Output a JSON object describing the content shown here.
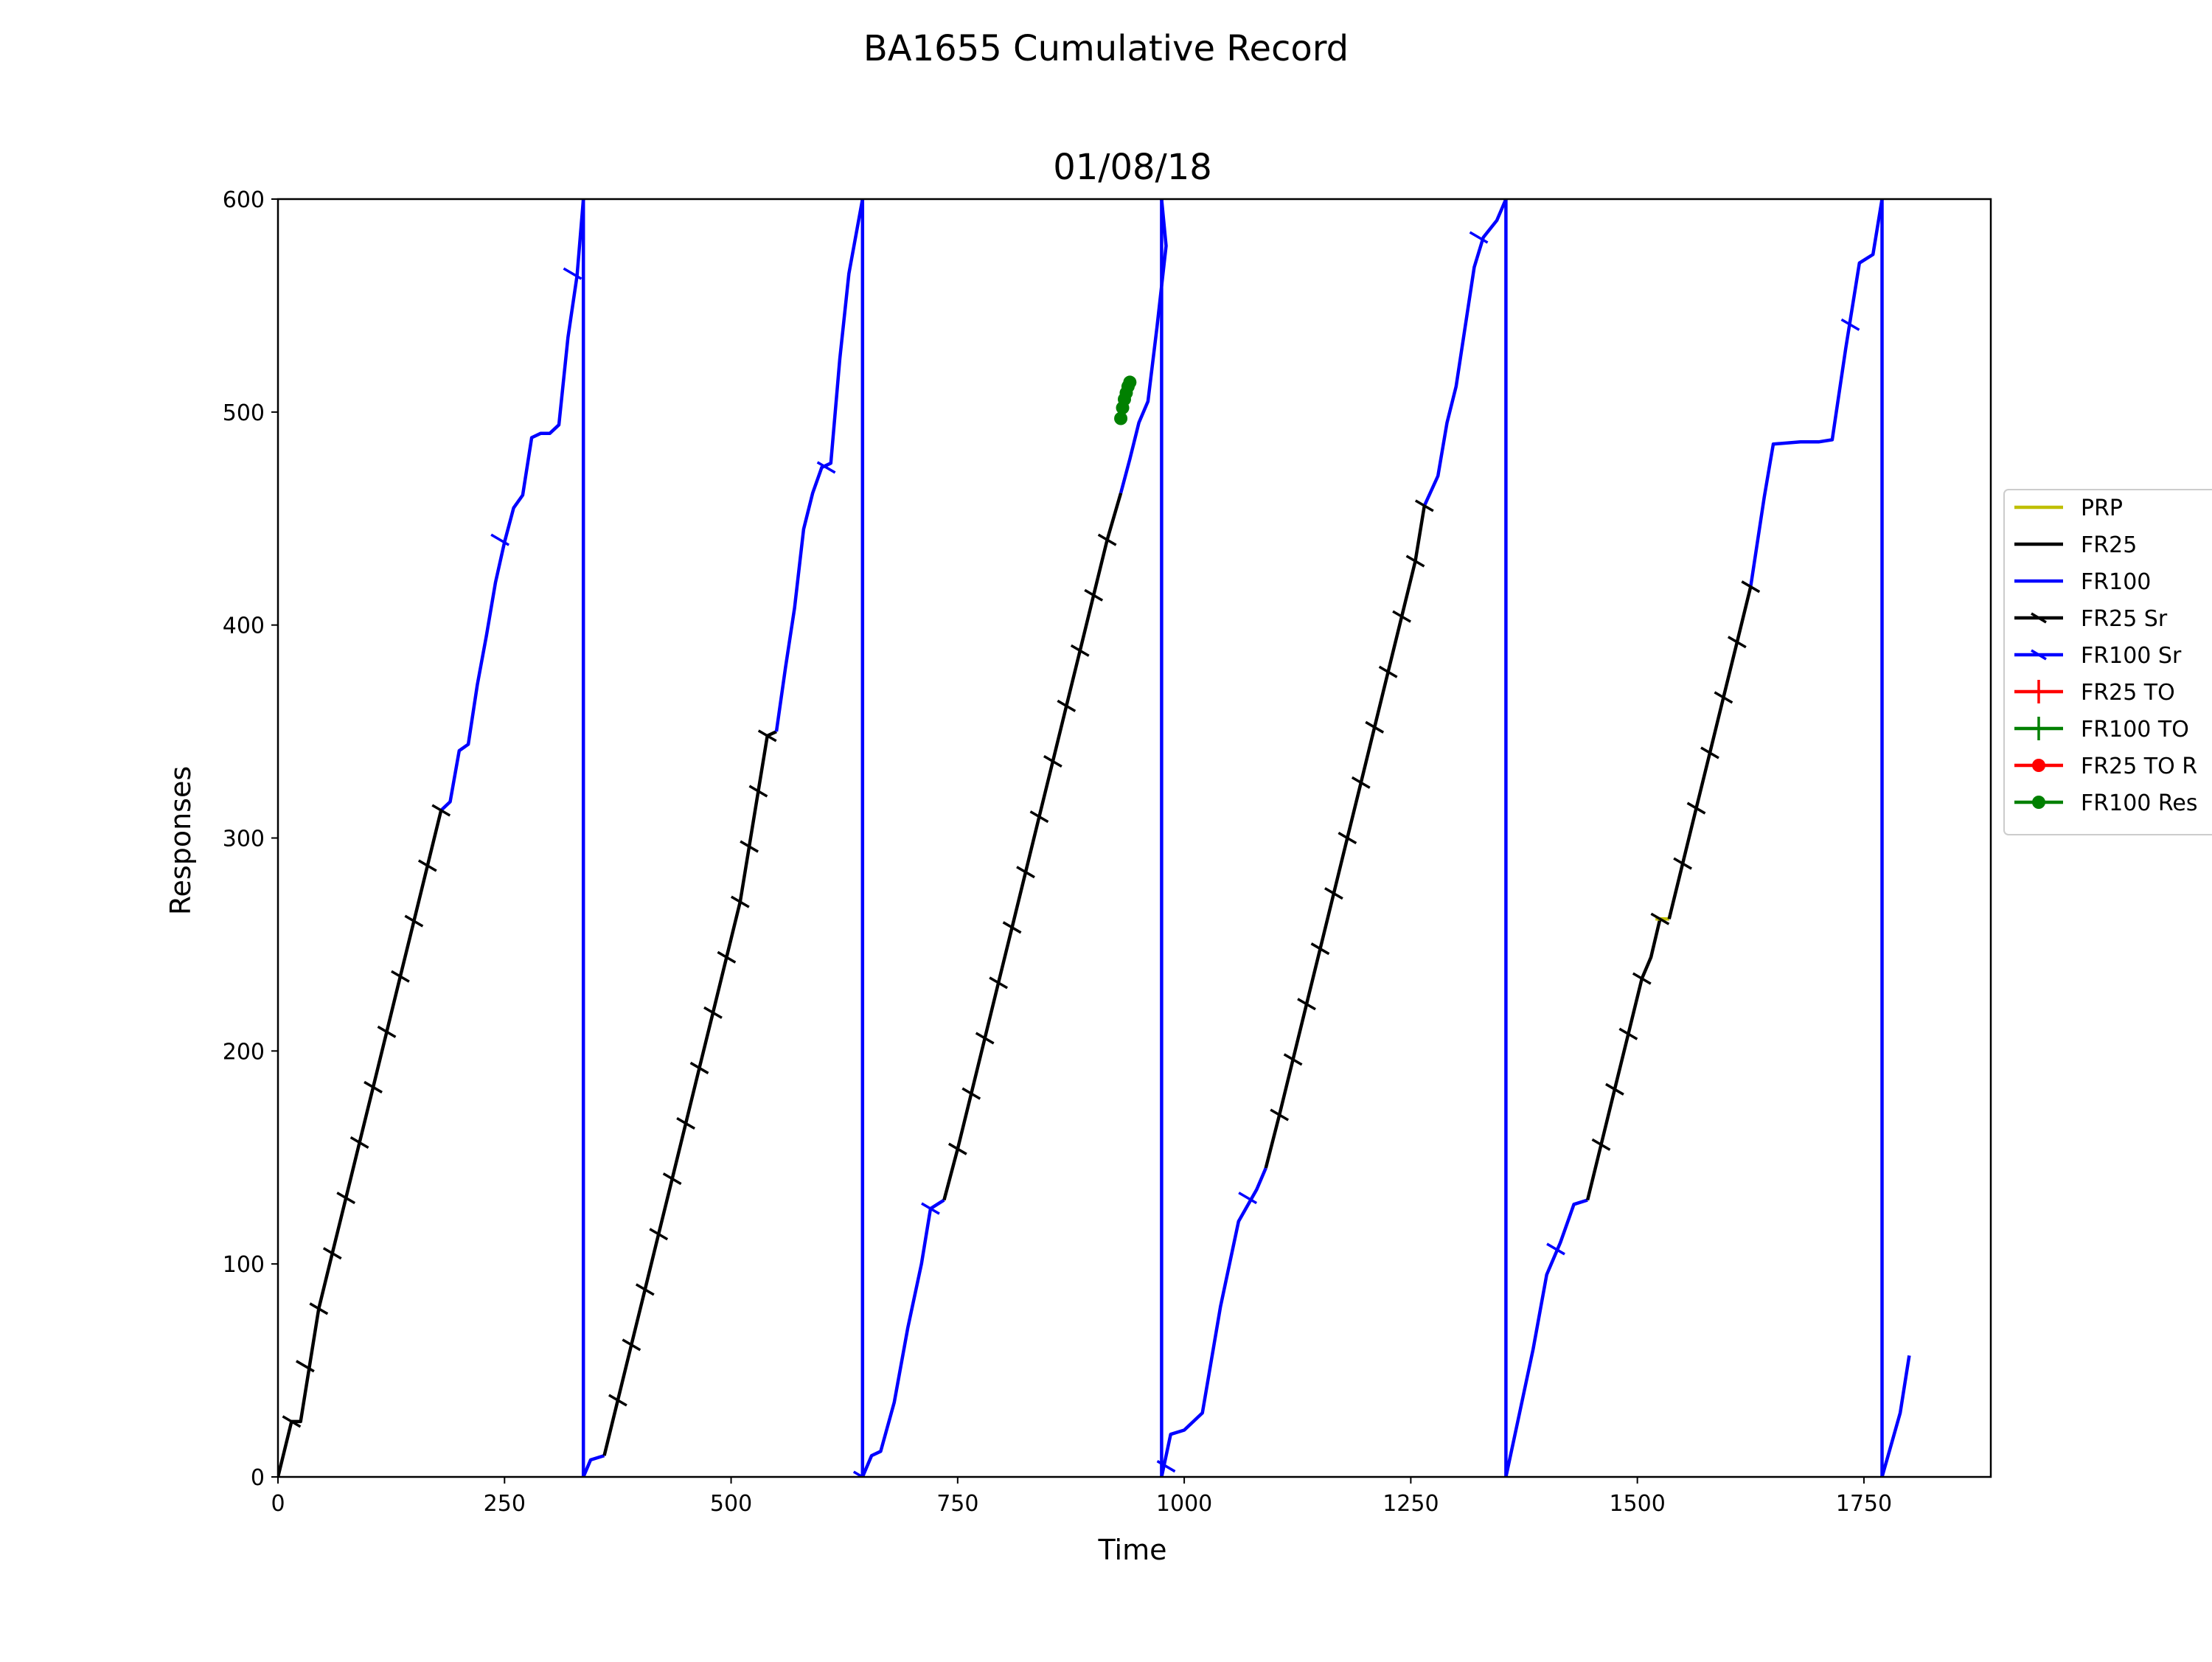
{
  "chart_data": {
    "type": "line",
    "suptitle": "BA1655 Cumulative Record",
    "title": "01/08/18",
    "xlabel": "Time",
    "ylabel": "Responses",
    "xlim": [
      0,
      1890
    ],
    "ylim": [
      0,
      600
    ],
    "xticks": [
      0,
      250,
      500,
      750,
      1000,
      1250,
      1500,
      1750
    ],
    "yticks": [
      0,
      100,
      200,
      300,
      400,
      500,
      600
    ],
    "grid": false,
    "legend_position": "right, outside plot",
    "legend": [
      {
        "label": "PRP",
        "color": "#bfbf00",
        "marker": "none"
      },
      {
        "label": "FR25",
        "color": "#000000",
        "marker": "none"
      },
      {
        "label": "FR100",
        "color": "#0000ff",
        "marker": "none"
      },
      {
        "label": "FR25 Sr",
        "color": "#000000",
        "marker": "tick"
      },
      {
        "label": "FR100 Sr",
        "color": "#0000ff",
        "marker": "tick"
      },
      {
        "label": "FR25 TO",
        "color": "#ff0000",
        "marker": "plus"
      },
      {
        "label": "FR100 TO",
        "color": "#008000",
        "marker": "plus"
      },
      {
        "label": "FR25 TO R",
        "color": "#ff0000",
        "marker": "dot"
      },
      {
        "label": "FR100 Res",
        "color": "#008000",
        "marker": "dot"
      }
    ],
    "series": [
      {
        "name": "FR25",
        "color": "#000000",
        "points": [
          [
            0,
            0
          ],
          [
            15,
            26
          ],
          [
            25,
            26
          ],
          [
            45,
            79
          ],
          [
            60,
            105
          ],
          [
            75,
            131
          ],
          [
            90,
            157
          ],
          [
            105,
            183
          ],
          [
            120,
            209
          ],
          [
            135,
            235
          ],
          [
            150,
            261
          ],
          [
            165,
            287
          ],
          [
            180,
            313
          ]
        ]
      },
      {
        "name": "FR100",
        "color": "#0000ff",
        "points": [
          [
            180,
            313
          ],
          [
            190,
            317
          ],
          [
            200,
            341
          ],
          [
            210,
            344
          ],
          [
            220,
            372
          ],
          [
            230,
            395
          ],
          [
            240,
            420
          ],
          [
            250,
            439
          ],
          [
            260,
            455
          ],
          [
            270,
            461
          ],
          [
            280,
            488
          ],
          [
            290,
            490
          ],
          [
            300,
            490
          ],
          [
            310,
            494
          ],
          [
            320,
            535
          ],
          [
            330,
            564
          ],
          [
            337,
            600
          ]
        ]
      },
      {
        "name": "FR100",
        "color": "#0000ff",
        "points": [
          [
            337,
            600
          ],
          [
            337,
            0
          ],
          [
            345,
            8
          ],
          [
            360,
            10
          ]
        ]
      },
      {
        "name": "FR25",
        "color": "#000000",
        "points": [
          [
            360,
            10
          ],
          [
            375,
            36
          ],
          [
            390,
            62
          ],
          [
            405,
            88
          ],
          [
            420,
            114
          ],
          [
            435,
            140
          ],
          [
            450,
            166
          ],
          [
            465,
            192
          ],
          [
            480,
            218
          ],
          [
            495,
            244
          ],
          [
            510,
            270
          ],
          [
            520,
            296
          ],
          [
            530,
            322
          ],
          [
            540,
            348
          ],
          [
            550,
            350
          ]
        ]
      },
      {
        "name": "FR100",
        "color": "#0000ff",
        "points": [
          [
            550,
            350
          ],
          [
            560,
            380
          ],
          [
            570,
            408
          ],
          [
            580,
            445
          ],
          [
            590,
            462
          ],
          [
            600,
            474
          ],
          [
            610,
            476
          ],
          [
            620,
            525
          ],
          [
            630,
            565
          ],
          [
            645,
            600
          ]
        ]
      },
      {
        "name": "FR100",
        "color": "#0000ff",
        "points": [
          [
            645,
            600
          ],
          [
            645,
            0
          ],
          [
            655,
            10
          ],
          [
            665,
            12
          ],
          [
            680,
            35
          ],
          [
            695,
            70
          ],
          [
            710,
            100
          ],
          [
            720,
            126
          ],
          [
            735,
            130
          ]
        ]
      },
      {
        "name": "FR25",
        "color": "#000000",
        "points": [
          [
            735,
            130
          ],
          [
            750,
            154
          ],
          [
            765,
            180
          ],
          [
            780,
            206
          ],
          [
            795,
            232
          ],
          [
            810,
            258
          ],
          [
            825,
            284
          ],
          [
            840,
            310
          ],
          [
            855,
            336
          ],
          [
            870,
            362
          ],
          [
            885,
            388
          ],
          [
            900,
            414
          ],
          [
            915,
            440
          ],
          [
            930,
            462
          ]
        ]
      },
      {
        "name": "FR100",
        "color": "#0000ff",
        "points": [
          [
            930,
            462
          ],
          [
            940,
            478
          ],
          [
            950,
            495
          ],
          [
            960,
            505
          ],
          [
            970,
            540
          ],
          [
            980,
            578
          ],
          [
            975,
            600
          ]
        ]
      },
      {
        "name": "FR100",
        "color": "#0000ff",
        "points": [
          [
            975,
            600
          ],
          [
            975,
            0
          ],
          [
            985,
            20
          ],
          [
            1000,
            22
          ],
          [
            1020,
            30
          ],
          [
            1040,
            80
          ],
          [
            1060,
            120
          ],
          [
            1080,
            135
          ],
          [
            1090,
            145
          ]
        ]
      },
      {
        "name": "FR25",
        "color": "#000000",
        "points": [
          [
            1090,
            145
          ],
          [
            1105,
            170
          ],
          [
            1120,
            196
          ],
          [
            1135,
            222
          ],
          [
            1150,
            248
          ],
          [
            1165,
            274
          ],
          [
            1180,
            300
          ],
          [
            1195,
            326
          ],
          [
            1210,
            352
          ],
          [
            1225,
            378
          ],
          [
            1240,
            404
          ],
          [
            1255,
            430
          ],
          [
            1265,
            456
          ]
        ]
      },
      {
        "name": "FR100",
        "color": "#0000ff",
        "points": [
          [
            1265,
            456
          ],
          [
            1280,
            470
          ],
          [
            1290,
            495
          ],
          [
            1300,
            512
          ],
          [
            1310,
            540
          ],
          [
            1320,
            568
          ],
          [
            1330,
            582
          ],
          [
            1345,
            590
          ],
          [
            1355,
            600
          ]
        ]
      },
      {
        "name": "FR100",
        "color": "#0000ff",
        "points": [
          [
            1355,
            600
          ],
          [
            1355,
            0
          ],
          [
            1370,
            30
          ],
          [
            1385,
            60
          ],
          [
            1400,
            95
          ],
          [
            1415,
            110
          ],
          [
            1430,
            128
          ],
          [
            1445,
            130
          ]
        ]
      },
      {
        "name": "FR25",
        "color": "#000000",
        "points": [
          [
            1445,
            130
          ],
          [
            1460,
            156
          ],
          [
            1475,
            182
          ],
          [
            1490,
            208
          ],
          [
            1505,
            234
          ],
          [
            1515,
            244
          ],
          [
            1525,
            262
          ],
          [
            1535,
            262
          ]
        ]
      },
      {
        "name": "PRP",
        "color": "#bfbf00",
        "points": [
          [
            1520,
            262
          ],
          [
            1535,
            262
          ]
        ]
      },
      {
        "name": "FR25",
        "color": "#000000",
        "points": [
          [
            1535,
            262
          ],
          [
            1550,
            288
          ],
          [
            1565,
            314
          ],
          [
            1580,
            340
          ],
          [
            1595,
            366
          ],
          [
            1610,
            392
          ],
          [
            1625,
            418
          ]
        ]
      },
      {
        "name": "FR100",
        "color": "#0000ff",
        "points": [
          [
            1625,
            418
          ],
          [
            1640,
            460
          ],
          [
            1650,
            485
          ],
          [
            1680,
            486
          ],
          [
            1700,
            486
          ],
          [
            1715,
            487
          ],
          [
            1730,
            530
          ],
          [
            1745,
            570
          ],
          [
            1760,
            574
          ],
          [
            1770,
            600
          ]
        ]
      },
      {
        "name": "FR100",
        "color": "#0000ff",
        "points": [
          [
            1770,
            600
          ],
          [
            1770,
            0
          ],
          [
            1780,
            15
          ],
          [
            1790,
            30
          ],
          [
            1800,
            57
          ]
        ]
      }
    ],
    "reinforcements": [
      {
        "series": "FR25 Sr",
        "color": "#000000",
        "points": [
          [
            15,
            26
          ],
          [
            30,
            52
          ],
          [
            45,
            79
          ],
          [
            60,
            105
          ],
          [
            75,
            131
          ],
          [
            90,
            157
          ],
          [
            105,
            183
          ],
          [
            120,
            209
          ],
          [
            135,
            235
          ],
          [
            150,
            261
          ],
          [
            165,
            287
          ],
          [
            180,
            313
          ],
          [
            375,
            36
          ],
          [
            390,
            62
          ],
          [
            405,
            88
          ],
          [
            420,
            114
          ],
          [
            435,
            140
          ],
          [
            450,
            166
          ],
          [
            465,
            192
          ],
          [
            480,
            218
          ],
          [
            495,
            244
          ],
          [
            510,
            270
          ],
          [
            520,
            296
          ],
          [
            530,
            322
          ],
          [
            540,
            348
          ],
          [
            750,
            154
          ],
          [
            765,
            180
          ],
          [
            780,
            206
          ],
          [
            795,
            232
          ],
          [
            810,
            258
          ],
          [
            825,
            284
          ],
          [
            840,
            310
          ],
          [
            855,
            336
          ],
          [
            870,
            362
          ],
          [
            885,
            388
          ],
          [
            900,
            414
          ],
          [
            915,
            440
          ],
          [
            1105,
            170
          ],
          [
            1120,
            196
          ],
          [
            1135,
            222
          ],
          [
            1150,
            248
          ],
          [
            1165,
            274
          ],
          [
            1180,
            300
          ],
          [
            1195,
            326
          ],
          [
            1210,
            352
          ],
          [
            1225,
            378
          ],
          [
            1240,
            404
          ],
          [
            1255,
            430
          ],
          [
            1265,
            456
          ],
          [
            1460,
            156
          ],
          [
            1475,
            182
          ],
          [
            1490,
            208
          ],
          [
            1505,
            234
          ],
          [
            1525,
            262
          ],
          [
            1550,
            288
          ],
          [
            1565,
            314
          ],
          [
            1580,
            340
          ],
          [
            1595,
            366
          ],
          [
            1610,
            392
          ],
          [
            1625,
            418
          ]
        ]
      },
      {
        "series": "FR100 Sr",
        "color": "#0000ff",
        "points": [
          [
            245,
            440
          ],
          [
            325,
            565
          ],
          [
            605,
            474
          ],
          [
            720,
            126
          ],
          [
            1070,
            131
          ],
          [
            1325,
            582
          ],
          [
            1410,
            107
          ],
          [
            1735,
            541
          ],
          [
            980,
            5
          ],
          [
            645,
            0
          ]
        ]
      }
    ],
    "timeout_responses": [
      {
        "series": "FR100 Res",
        "color": "#008000",
        "points": [
          [
            930,
            497
          ],
          [
            932,
            502
          ],
          [
            934,
            506
          ],
          [
            936,
            509
          ],
          [
            938,
            512
          ],
          [
            940,
            514
          ]
        ]
      }
    ]
  }
}
